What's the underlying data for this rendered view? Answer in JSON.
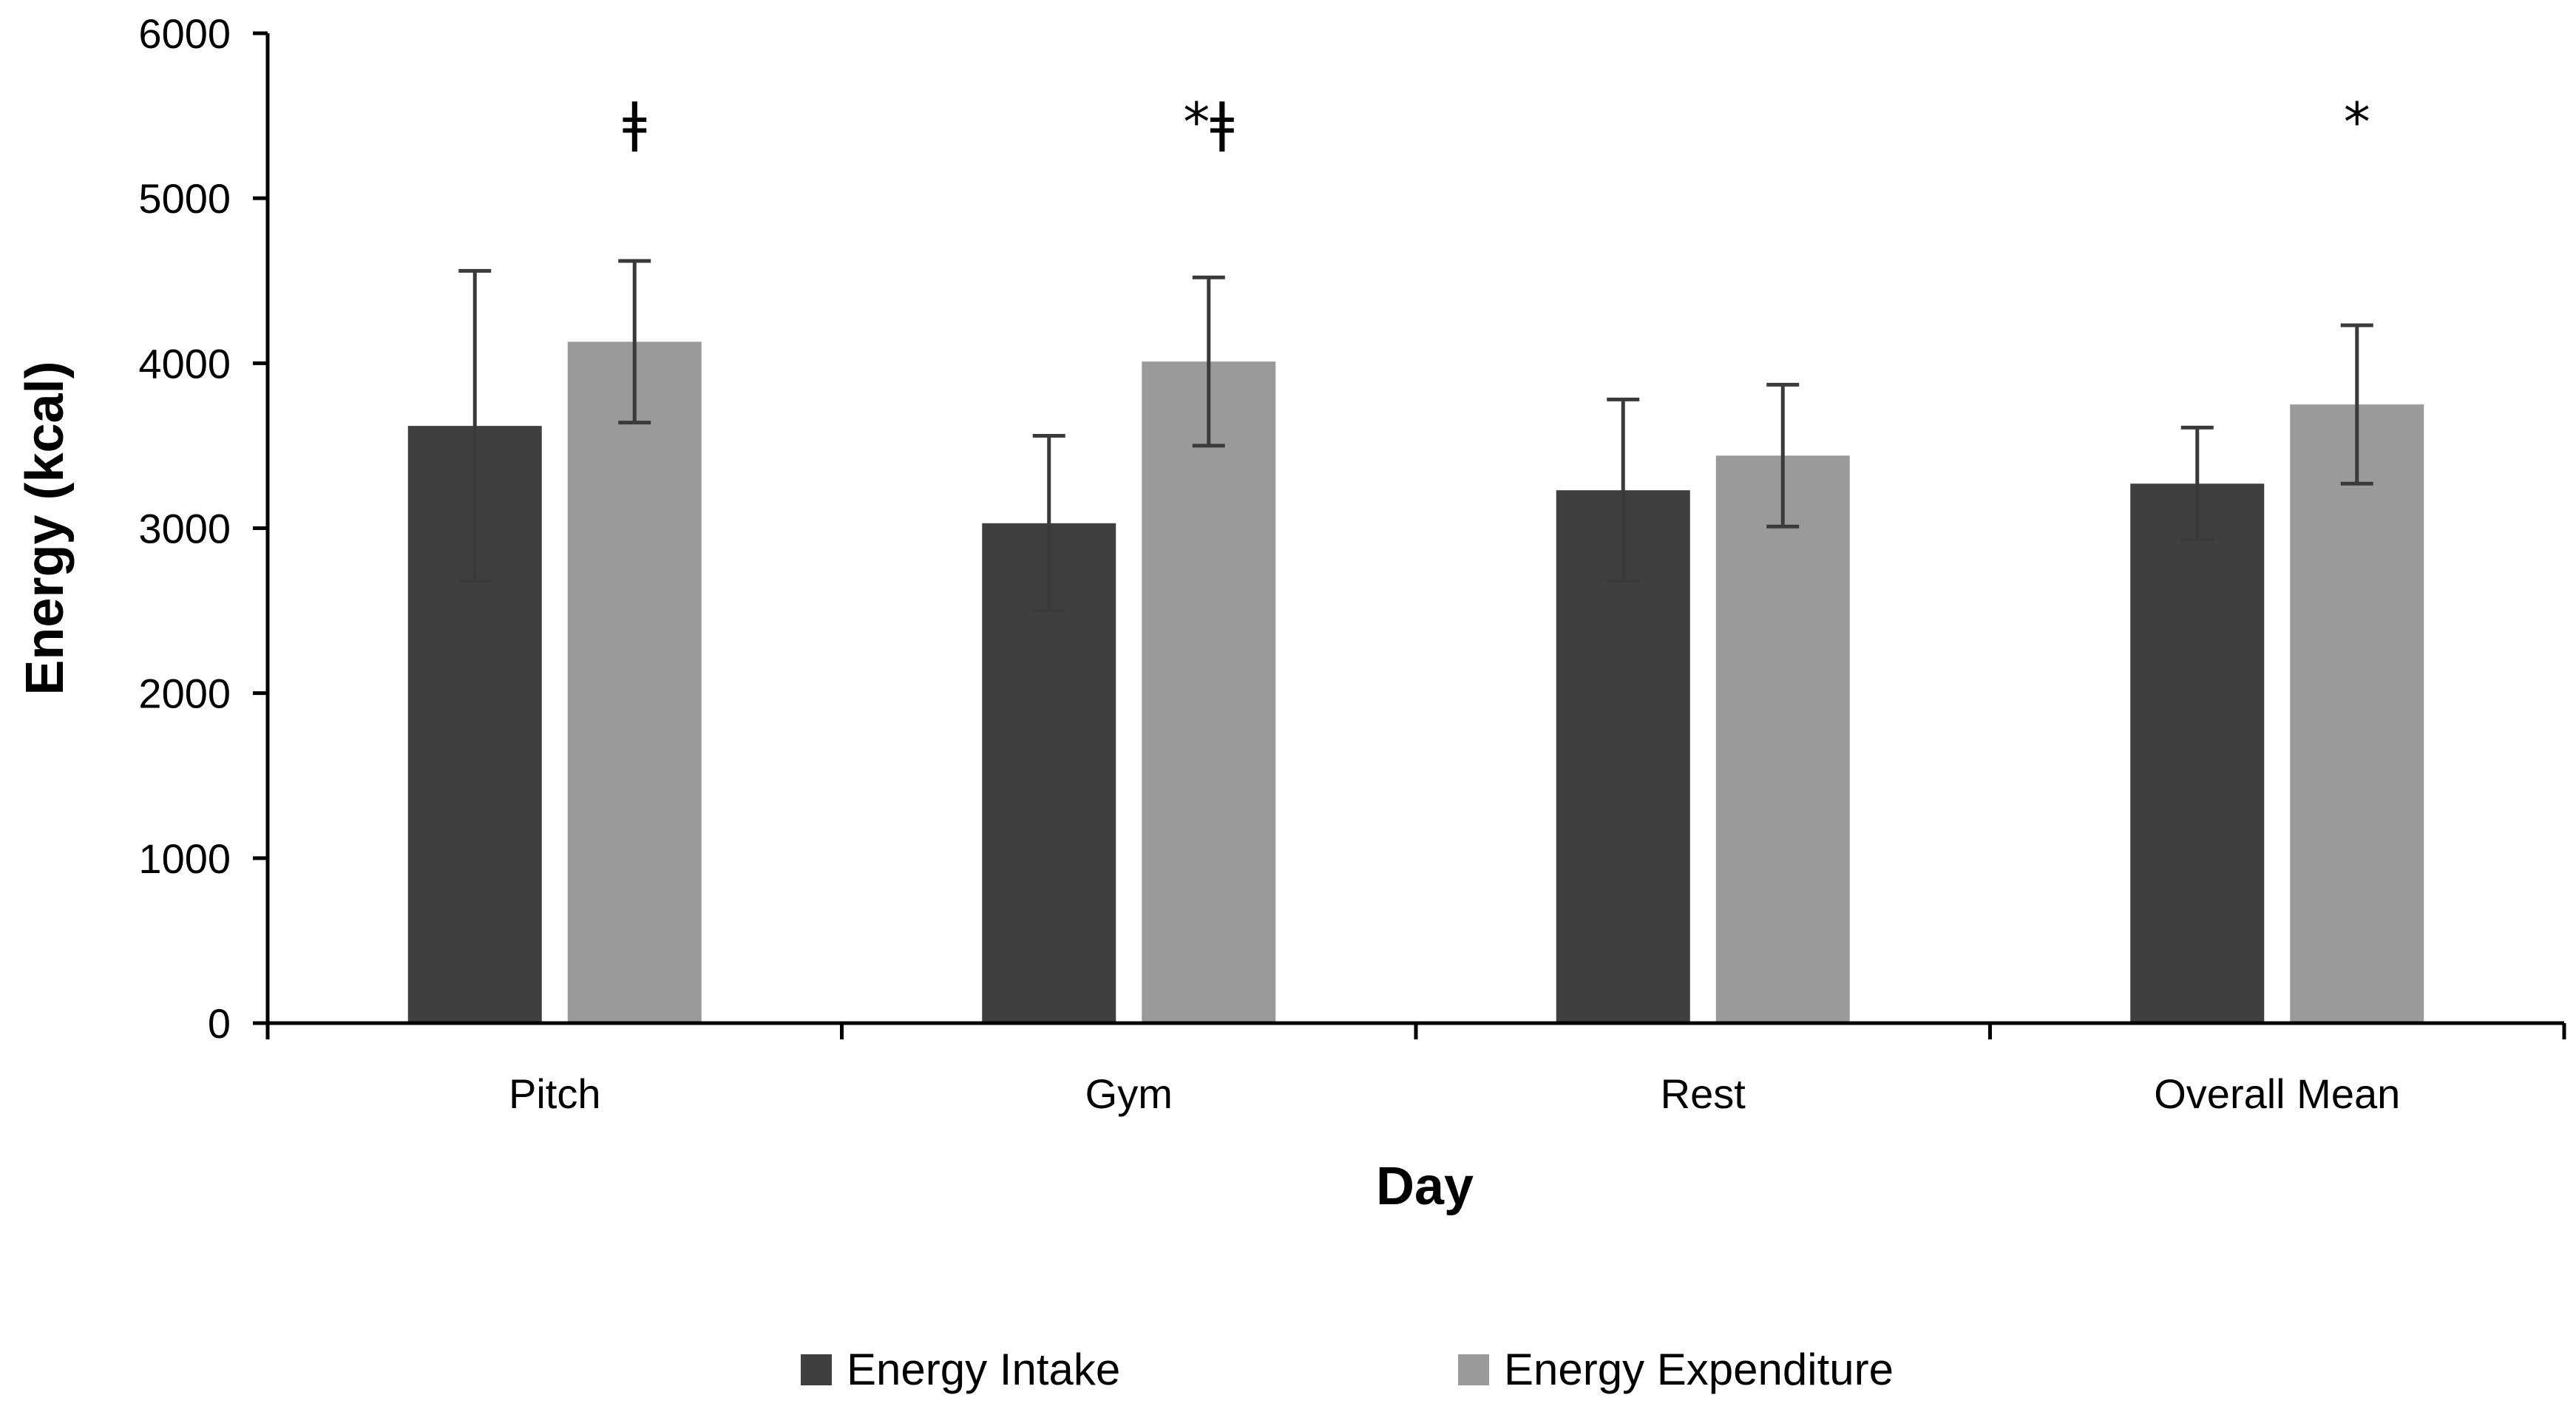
{
  "chart_data": {
    "type": "bar",
    "title": "",
    "xlabel": "Day",
    "ylabel": "Energy (kcal)",
    "ylim": [
      0,
      6000
    ],
    "yticks": [
      0,
      1000,
      2000,
      3000,
      4000,
      5000,
      6000
    ],
    "grid": false,
    "legend_position": "bottom",
    "categories": [
      "Pitch",
      "Gym",
      "Rest",
      "Overall Mean"
    ],
    "series": [
      {
        "name": "Energy Intake",
        "color": "#3f3f3f",
        "values": [
          3620,
          3030,
          3230,
          3270
        ],
        "error": [
          940,
          530,
          550,
          340
        ]
      },
      {
        "name": "Energy Expenditure",
        "color": "#9a9a9a",
        "values": [
          4130,
          4010,
          3440,
          3750
        ],
        "error": [
          490,
          510,
          430,
          480
        ]
      }
    ],
    "annotations": [
      {
        "category": "Pitch",
        "series": "Energy Expenditure",
        "text": "ǂ"
      },
      {
        "category": "Gym",
        "series": "Energy Expenditure",
        "text": "*ǂ"
      },
      {
        "category": "Overall Mean",
        "series": "Energy Expenditure",
        "text": "*"
      }
    ]
  }
}
